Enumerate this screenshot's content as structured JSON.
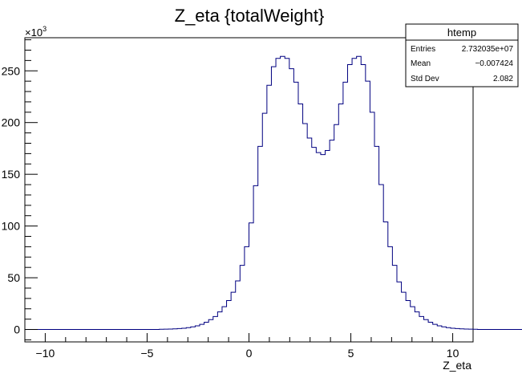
{
  "chart_data": {
    "type": "histogram",
    "title": "Z_eta {totalWeight}",
    "xlabel": "Z_eta",
    "ylabel": "",
    "y_multiplier": "×10",
    "y_multiplier_exponent": "3",
    "xlim": [
      -11,
      11
    ],
    "ylim": [
      -12,
      282
    ],
    "x_ticks": [
      -10,
      -5,
      0,
      5,
      10
    ],
    "x_tick_labels": [
      "−10",
      "−5",
      "0",
      "5",
      "10"
    ],
    "y_ticks": [
      0,
      50,
      100,
      150,
      200,
      250
    ],
    "y_tick_labels": [
      "0",
      "50",
      "100",
      "150",
      "200",
      "250"
    ],
    "bin_edges_start": -11,
    "bin_width": 0.22,
    "values": [
      0,
      0,
      0,
      0,
      0,
      0,
      0,
      0,
      0,
      0,
      0,
      0,
      0,
      0,
      0,
      0,
      0,
      0,
      0,
      0,
      0,
      0,
      0,
      0,
      0,
      0,
      0,
      0,
      0,
      0,
      0.2,
      0.3,
      0.4,
      0.6,
      0.9,
      1.2,
      1.8,
      2.5,
      3.5,
      5,
      7,
      9.5,
      12.5,
      17,
      22,
      28,
      36,
      47,
      62,
      80,
      103,
      139,
      177,
      209,
      236,
      254,
      262,
      264,
      262,
      252,
      239,
      218,
      199,
      185,
      176,
      171,
      169,
      173,
      183,
      198,
      218,
      239,
      256,
      262,
      264,
      256,
      240,
      210,
      177,
      140,
      104,
      80,
      62,
      46,
      36,
      28,
      22,
      17,
      12.5,
      9.5,
      7,
      5,
      3.5,
      2.5,
      1.8,
      1.2,
      0.9,
      0.6,
      0.4,
      0.3,
      0.2,
      0,
      0,
      0,
      0,
      0,
      0,
      0,
      0,
      0,
      0,
      0,
      0,
      0,
      0,
      0,
      0,
      0,
      0,
      0,
      0,
      0
    ],
    "line_color": "#000080",
    "stats_box": {
      "title": "htemp",
      "rows": [
        {
          "label": "Entries",
          "value": "2.732035e+07"
        },
        {
          "label": "Mean",
          "value": "−0.007424"
        },
        {
          "label": "Std Dev",
          "value": "2.082"
        }
      ]
    }
  }
}
